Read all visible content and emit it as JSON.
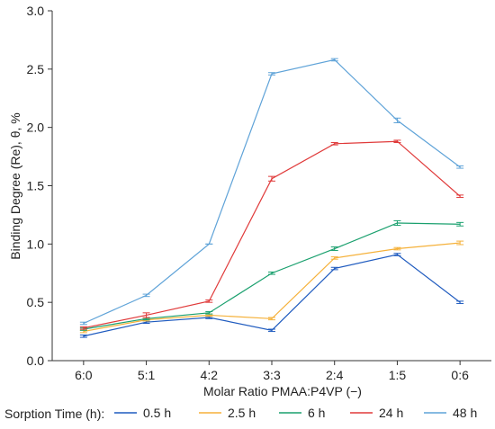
{
  "chart_data": {
    "type": "line",
    "title": "",
    "xlabel": "Molar Ratio PMAA:P4VP (−)",
    "ylabel": "Binding Degree (Re), θ, %",
    "categories": [
      "6:0",
      "5:1",
      "4:2",
      "3:3",
      "2:4",
      "1:5",
      "0:6"
    ],
    "ylim": [
      0,
      3.0
    ],
    "yticks": [
      "0.0",
      "0.5",
      "1.0",
      "1.5",
      "2.0",
      "2.5",
      "3.0"
    ],
    "grid": false,
    "error_bars": true,
    "legend_title": "Sorption Time (h):",
    "legend_position": "bottom",
    "series": [
      {
        "name": "0.5 h",
        "color": "#1f5bbf",
        "values": [
          0.21,
          0.33,
          0.37,
          0.26,
          0.79,
          0.91,
          0.5
        ],
        "errors": [
          0.01,
          0.01,
          0.01,
          0.01,
          0.01,
          0.01,
          0.01
        ]
      },
      {
        "name": "2.5 h",
        "color": "#f5b13a",
        "values": [
          0.25,
          0.35,
          0.39,
          0.36,
          0.88,
          0.96,
          1.01
        ],
        "errors": [
          0.01,
          0.01,
          0.01,
          0.01,
          0.01,
          0.01,
          0.015
        ]
      },
      {
        "name": "6 h",
        "color": "#1aa06e",
        "values": [
          0.27,
          0.36,
          0.41,
          0.75,
          0.96,
          1.18,
          1.17
        ],
        "errors": [
          0.01,
          0.01,
          0.01,
          0.01,
          0.015,
          0.02,
          0.015
        ]
      },
      {
        "name": "24 h",
        "color": "#e03a3a",
        "values": [
          0.28,
          0.39,
          0.51,
          1.56,
          1.86,
          1.88,
          1.41
        ],
        "errors": [
          0.01,
          0.02,
          0.01,
          0.02,
          0.01,
          0.01,
          0.01
        ]
      },
      {
        "name": "48 h",
        "color": "#5fa3d8",
        "values": [
          0.32,
          0.56,
          1.0,
          2.46,
          2.58,
          2.06,
          1.66
        ],
        "errors": [
          0.01,
          0.01,
          0.0,
          0.01,
          0.01,
          0.02,
          0.01
        ]
      }
    ]
  }
}
